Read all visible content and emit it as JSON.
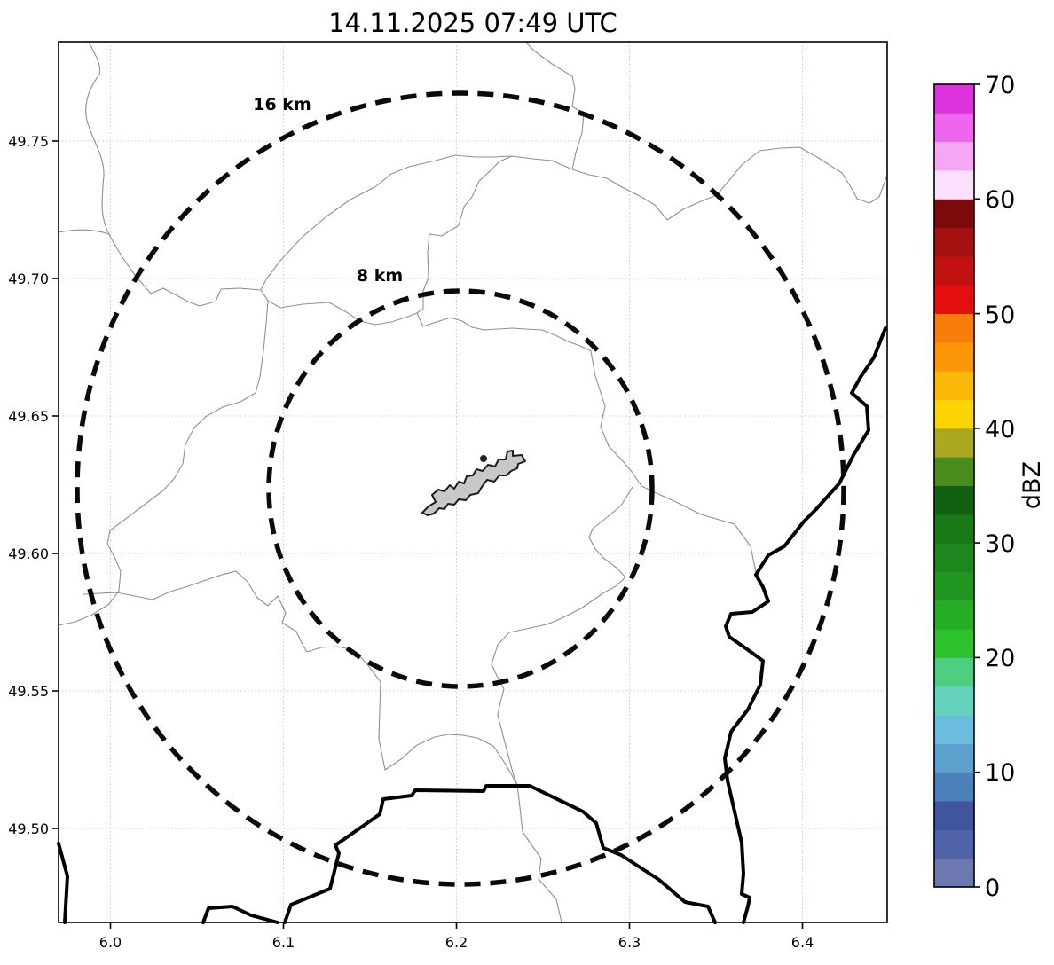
{
  "title": "14.11.2025 07:49 UTC",
  "map": {
    "x_ticks": [
      "6.0",
      "6.1",
      "6.2",
      "6.3",
      "6.4"
    ],
    "y_ticks": [
      "49.75",
      "49.70",
      "49.65",
      "49.60",
      "49.55",
      "49.50"
    ],
    "rings": {
      "outer_label": "16 km",
      "inner_label": "8 km"
    }
  },
  "colorbar": {
    "label": "dBZ",
    "tick_labels": [
      "70",
      "60",
      "50",
      "40",
      "30",
      "20",
      "10",
      "0"
    ],
    "min": 0,
    "max": 70,
    "colors_bottom_to_top": [
      "#6b79b0",
      "#5063a8",
      "#41549e",
      "#4c80ba",
      "#5ca0ce",
      "#6abddc",
      "#65d3be",
      "#4ecf80",
      "#2ec22e",
      "#25ad25",
      "#1f941f",
      "#1d871d",
      "#177a17",
      "#126112",
      "#4a8c1e",
      "#a9a921",
      "#fcd403",
      "#fbb806",
      "#fa9708",
      "#f87e0b",
      "#e30e0e",
      "#c21111",
      "#a31111",
      "#7d0a0a",
      "#fce1fc",
      "#f5a6f5",
      "#ee66ee",
      "#dd33dd"
    ]
  },
  "colors": {
    "airport_fill": "#c8c8c8",
    "admin_line": "#8f8f8f",
    "country_border": "#000000"
  },
  "chart_data": {
    "type": "map",
    "title": "14.11.2025 07:49 UTC",
    "x_axis": {
      "ticks": [
        6.0,
        6.1,
        6.2,
        6.3,
        6.4
      ],
      "range": [
        5.97,
        6.45
      ]
    },
    "y_axis": {
      "ticks": [
        49.5,
        49.55,
        49.6,
        49.65,
        49.7,
        49.75
      ],
      "range": [
        49.466,
        49.786
      ]
    },
    "colorbar": {
      "label": "dBZ",
      "range": [
        0,
        70
      ],
      "tick_step": 10,
      "bands": 28
    },
    "range_rings_km": [
      8,
      16
    ],
    "ring_center": {
      "lon": 6.203,
      "lat": 49.624
    },
    "echoes": []
  }
}
